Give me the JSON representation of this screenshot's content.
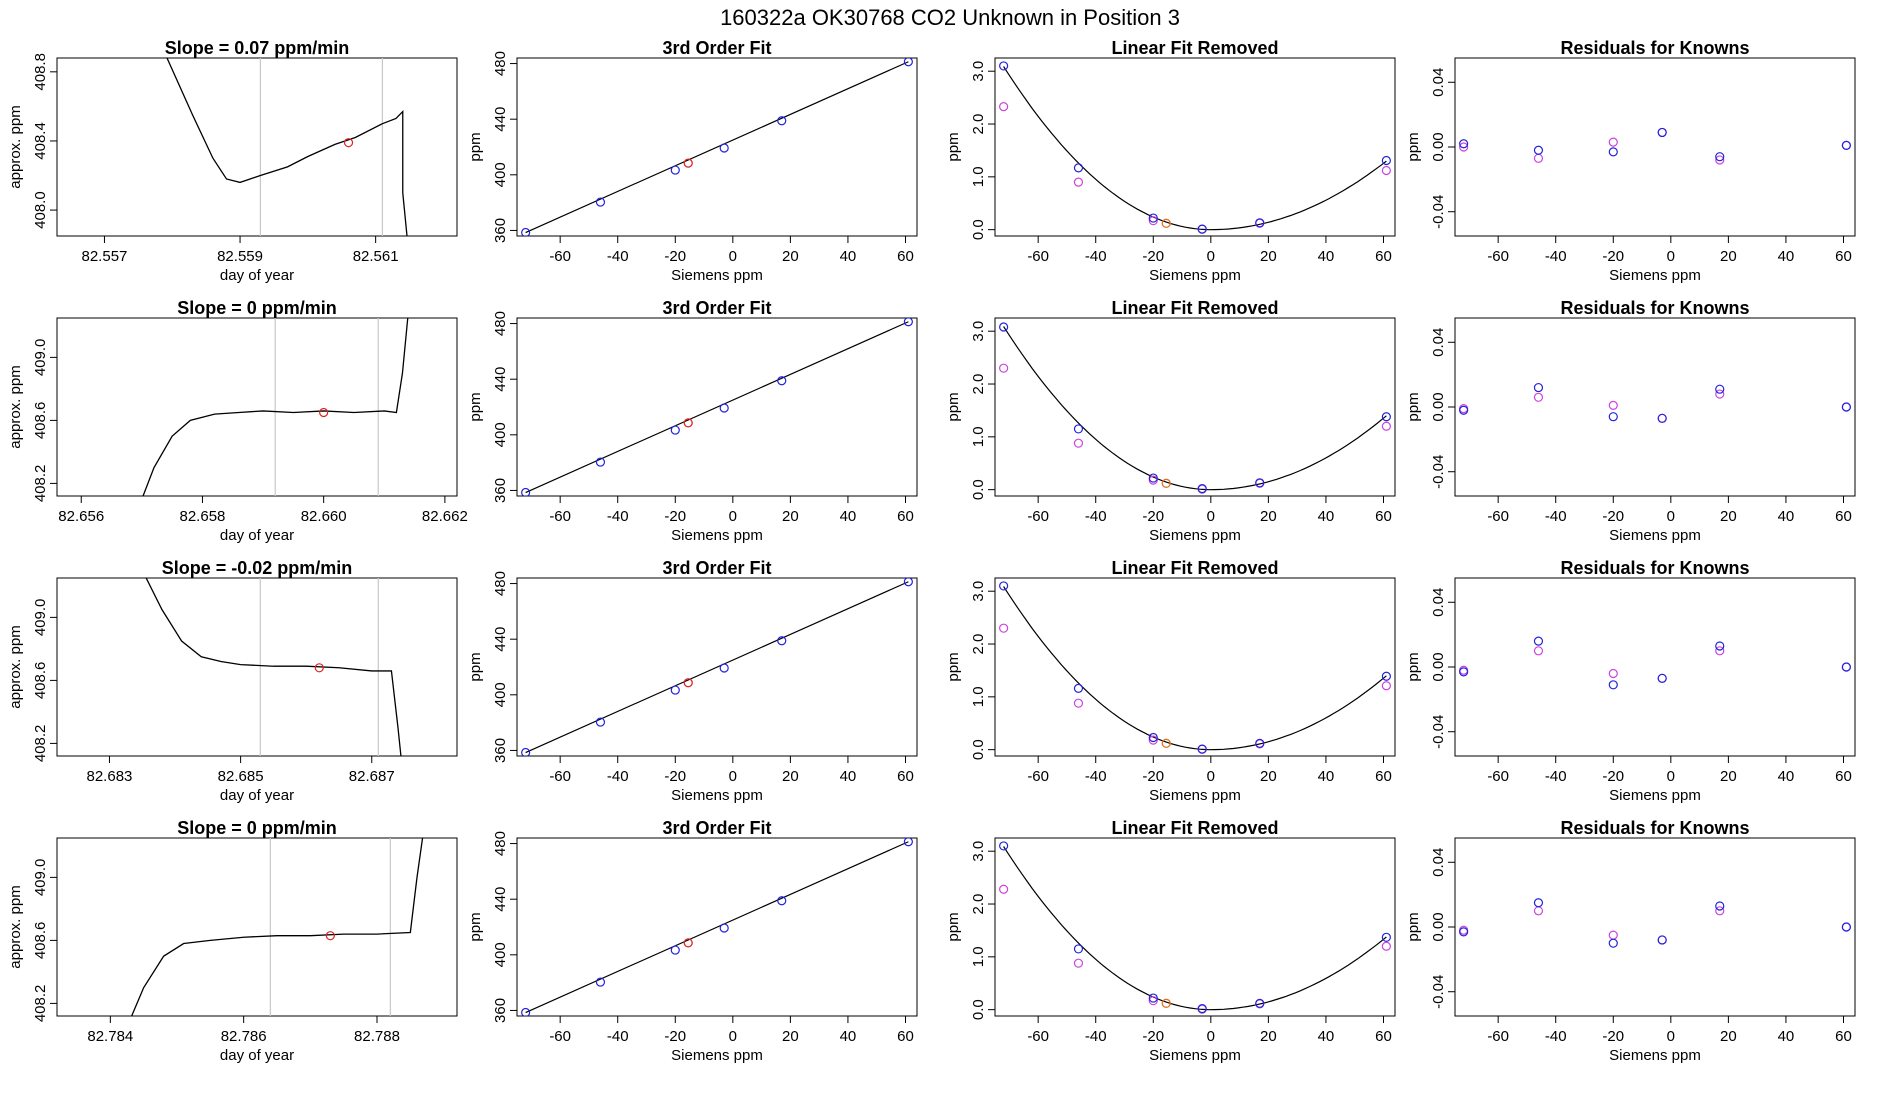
{
  "figure_title": "160322a     OK30768    CO2 Unknown in Position  3",
  "colors": {
    "known": "#2222dd",
    "residual_alt": "#cc44dd",
    "unknown": "#dd2222",
    "unknown_orange": "#e07020",
    "line": "#000000",
    "guide": "#c8c8c8"
  },
  "chart_data": [
    {
      "type": "line",
      "row": 1,
      "title": "Slope =  0.07  ppm/min",
      "xlabel": "day of year",
      "ylabel": "approx. ppm",
      "xlim": [
        82.5563,
        82.5622
      ],
      "ylim": [
        407.85,
        408.88
      ],
      "xticks": [
        "82.557",
        "82.559",
        "82.561"
      ],
      "xtick_values": [
        82.557,
        82.559,
        82.561
      ],
      "yticks": [
        "408.0",
        "408.4",
        "408.8"
      ],
      "ytick_values": [
        408.0,
        408.4,
        408.8
      ],
      "vlines": [
        82.5593,
        82.5611
      ],
      "trace_x": [
        82.5579,
        82.5583,
        82.5586,
        82.5588,
        82.559,
        82.5593,
        82.5597,
        82.56,
        82.5604,
        82.5607,
        82.5611,
        82.5613,
        82.5614,
        82.5614,
        82.5615
      ],
      "trace_y": [
        408.9,
        408.55,
        408.3,
        408.18,
        408.16,
        408.2,
        408.25,
        408.31,
        408.38,
        408.42,
        408.5,
        408.53,
        408.57,
        408.1,
        407.7
      ],
      "marker": {
        "x": 82.5606,
        "y": 408.39
      }
    },
    {
      "type": "line",
      "row": 2,
      "title": "Slope =  0  ppm/min",
      "xlabel": "day of year",
      "ylabel": "approx. ppm",
      "xlim": [
        82.6556,
        82.6622
      ],
      "ylim": [
        408.12,
        409.25
      ],
      "xticks": [
        "82.656",
        "82.658",
        "82.660",
        "82.662"
      ],
      "xtick_values": [
        82.656,
        82.658,
        82.66,
        82.662
      ],
      "yticks": [
        "408.2",
        "408.6",
        "409.0"
      ],
      "ytick_values": [
        408.2,
        408.6,
        409.0
      ],
      "vlines": [
        82.6592,
        82.6609
      ],
      "trace_x": [
        82.657,
        82.6572,
        82.6575,
        82.6578,
        82.6582,
        82.6586,
        82.659,
        82.6595,
        82.66,
        82.6605,
        82.661,
        82.6612,
        82.6613,
        82.6614
      ],
      "trace_y": [
        408.1,
        408.3,
        408.5,
        408.6,
        408.64,
        408.65,
        408.66,
        408.65,
        408.66,
        408.65,
        408.66,
        408.65,
        408.9,
        409.3
      ],
      "marker": {
        "x": 82.66,
        "y": 408.65
      }
    },
    {
      "type": "line",
      "row": 3,
      "title": "Slope =  -0.02  ppm/min",
      "xlabel": "day of year",
      "ylabel": "approx. ppm",
      "xlim": [
        82.6822,
        82.6883
      ],
      "ylim": [
        408.12,
        409.25
      ],
      "xticks": [
        "82.683",
        "82.685",
        "82.687"
      ],
      "xtick_values": [
        82.683,
        82.685,
        82.687
      ],
      "yticks": [
        "408.2",
        "408.6",
        "409.0"
      ],
      "ytick_values": [
        408.2,
        408.6,
        409.0
      ],
      "vlines": [
        82.6853,
        82.6871
      ],
      "trace_x": [
        82.6835,
        82.6838,
        82.6841,
        82.6844,
        82.6847,
        82.685,
        82.6855,
        82.686,
        82.6865,
        82.687,
        82.6873,
        82.6874,
        82.6875
      ],
      "trace_y": [
        409.3,
        409.05,
        408.85,
        408.75,
        408.72,
        408.7,
        408.69,
        408.69,
        408.68,
        408.66,
        408.66,
        408.3,
        407.9
      ],
      "marker": {
        "x": 82.6862,
        "y": 408.68
      }
    },
    {
      "type": "line",
      "row": 4,
      "title": "Slope =  0  ppm/min",
      "xlabel": "day of year",
      "ylabel": "approx. ppm",
      "xlim": [
        82.7832,
        82.7892
      ],
      "ylim": [
        408.12,
        409.25
      ],
      "xticks": [
        "82.784",
        "82.786",
        "82.788"
      ],
      "xtick_values": [
        82.784,
        82.786,
        82.788
      ],
      "yticks": [
        "408.2",
        "408.6",
        "409.0"
      ],
      "ytick_values": [
        408.2,
        408.6,
        409.0
      ],
      "vlines": [
        82.7864,
        82.7882
      ],
      "trace_x": [
        82.7843,
        82.7845,
        82.7848,
        82.7851,
        82.7855,
        82.786,
        82.7865,
        82.787,
        82.7875,
        82.788,
        82.7885,
        82.7886,
        82.7887
      ],
      "trace_y": [
        408.1,
        408.3,
        408.5,
        408.58,
        408.6,
        408.62,
        408.63,
        408.63,
        408.64,
        408.64,
        408.65,
        409.0,
        409.3
      ],
      "marker": {
        "x": 82.7873,
        "y": 408.63
      }
    },
    {
      "type": "scatter",
      "row": 1,
      "title": "3rd Order Fit",
      "xlabel": "Siemens ppm",
      "ylabel": "ppm",
      "xlim": [
        -75,
        64
      ],
      "ylim": [
        356,
        484
      ],
      "xticks": [
        "-60",
        "-40",
        "-20",
        "0",
        "20",
        "40",
        "60"
      ],
      "xtick_values": [
        -60,
        -40,
        -20,
        0,
        20,
        40,
        60
      ],
      "yticks": [
        "360",
        "400",
        "440",
        "480"
      ],
      "ytick_values": [
        360,
        400,
        440,
        480
      ],
      "curve_x": [
        -72,
        61
      ],
      "curve_y": [
        358.5,
        481.3
      ],
      "known_x": [
        -72,
        -46,
        -20,
        -3,
        17,
        61
      ],
      "known_y": [
        358.5,
        380.4,
        403.4,
        419.3,
        438.9,
        481.3
      ],
      "unknown_x": [
        -15.5
      ],
      "unknown_y": [
        408.4
      ]
    },
    {
      "type": "scatter",
      "row": 2,
      "title": "3rd Order Fit",
      "xlabel": "Siemens ppm",
      "ylabel": "ppm",
      "xlim": [
        -75,
        64
      ],
      "ylim": [
        356,
        484
      ],
      "xticks": [
        "-60",
        "-40",
        "-20",
        "0",
        "20",
        "40",
        "60"
      ],
      "xtick_values": [
        -60,
        -40,
        -20,
        0,
        20,
        40,
        60
      ],
      "yticks": [
        "360",
        "400",
        "440",
        "480"
      ],
      "ytick_values": [
        360,
        400,
        440,
        480
      ],
      "curve_x": [
        -72,
        61
      ],
      "curve_y": [
        358.5,
        481.3
      ],
      "known_x": [
        -72,
        -46,
        -20,
        -3,
        17,
        61
      ],
      "known_y": [
        358.5,
        380.4,
        403.4,
        419.3,
        438.9,
        481.3
      ],
      "unknown_x": [
        -15.5
      ],
      "unknown_y": [
        408.6
      ]
    },
    {
      "type": "scatter",
      "row": 3,
      "title": "3rd Order Fit",
      "xlabel": "Siemens ppm",
      "ylabel": "ppm",
      "xlim": [
        -75,
        64
      ],
      "ylim": [
        356,
        484
      ],
      "xticks": [
        "-60",
        "-40",
        "-20",
        "0",
        "20",
        "40",
        "60"
      ],
      "xtick_values": [
        -60,
        -40,
        -20,
        0,
        20,
        40,
        60
      ],
      "yticks": [
        "360",
        "400",
        "440",
        "480"
      ],
      "ytick_values": [
        360,
        400,
        440,
        480
      ],
      "curve_x": [
        -72,
        61
      ],
      "curve_y": [
        358.5,
        481.3
      ],
      "known_x": [
        -72,
        -46,
        -20,
        -3,
        17,
        61
      ],
      "known_y": [
        358.5,
        380.4,
        403.4,
        419.3,
        438.9,
        481.3
      ],
      "unknown_x": [
        -15.5
      ],
      "unknown_y": [
        408.7
      ]
    },
    {
      "type": "scatter",
      "row": 4,
      "title": "3rd Order Fit",
      "xlabel": "Siemens ppm",
      "ylabel": "ppm",
      "xlim": [
        -75,
        64
      ],
      "ylim": [
        356,
        484
      ],
      "xticks": [
        "-60",
        "-40",
        "-20",
        "0",
        "20",
        "40",
        "60"
      ],
      "xtick_values": [
        -60,
        -40,
        -20,
        0,
        20,
        40,
        60
      ],
      "yticks": [
        "360",
        "400",
        "440",
        "480"
      ],
      "ytick_values": [
        360,
        400,
        440,
        480
      ],
      "curve_x": [
        -72,
        61
      ],
      "curve_y": [
        358.5,
        481.3
      ],
      "known_x": [
        -72,
        -46,
        -20,
        -3,
        17,
        61
      ],
      "known_y": [
        358.5,
        380.4,
        403.4,
        419.3,
        438.9,
        481.3
      ],
      "unknown_x": [
        -15.5
      ],
      "unknown_y": [
        408.6
      ]
    },
    {
      "type": "scatter",
      "row": 1,
      "title": "Linear Fit Removed",
      "xlabel": "Siemens ppm",
      "ylabel": "ppm",
      "xlim": [
        -75,
        64
      ],
      "ylim": [
        -0.12,
        3.25
      ],
      "xticks": [
        "-60",
        "-40",
        "-20",
        "0",
        "20",
        "40",
        "60"
      ],
      "xtick_values": [
        -60,
        -40,
        -20,
        0,
        20,
        40,
        60
      ],
      "yticks": [
        "0.0",
        "1.0",
        "2.0",
        "3.0"
      ],
      "ytick_values": [
        0,
        1,
        2,
        3
      ],
      "parabola": {
        "vertex_x": 0,
        "a_left": 0.000596,
        "a_right": 0.000349
      },
      "known_x": [
        -72,
        -46,
        -20,
        -3,
        17,
        61
      ],
      "known_y": [
        3.1,
        1.17,
        0.22,
        0.01,
        0.13,
        1.31
      ],
      "alt_x": [
        -72,
        -46,
        -20,
        -3,
        17,
        61
      ],
      "alt_y": [
        2.33,
        0.9,
        0.17,
        0.01,
        0.12,
        1.12
      ],
      "unknown_x": [
        -15.5
      ],
      "unknown_y": [
        0.12
      ]
    },
    {
      "type": "scatter",
      "row": 2,
      "title": "Linear Fit Removed",
      "xlabel": "Siemens ppm",
      "ylabel": "ppm",
      "xlim": [
        -75,
        64
      ],
      "ylim": [
        -0.12,
        3.25
      ],
      "xticks": [
        "-60",
        "-40",
        "-20",
        "0",
        "20",
        "40",
        "60"
      ],
      "xtick_values": [
        -60,
        -40,
        -20,
        0,
        20,
        40,
        60
      ],
      "yticks": [
        "0.0",
        "1.0",
        "2.0",
        "3.0"
      ],
      "ytick_values": [
        0,
        1,
        2,
        3
      ],
      "parabola": {
        "vertex_x": 0,
        "a_left": 0.000596,
        "a_right": 0.000376
      },
      "known_x": [
        -72,
        -46,
        -20,
        -3,
        17,
        61
      ],
      "known_y": [
        3.08,
        1.15,
        0.22,
        0.02,
        0.13,
        1.38
      ],
      "alt_x": [
        -72,
        -46,
        -20,
        -3,
        17,
        61
      ],
      "alt_y": [
        2.3,
        0.88,
        0.18,
        0.01,
        0.12,
        1.2
      ],
      "unknown_x": [
        -15.5
      ],
      "unknown_y": [
        0.12
      ]
    },
    {
      "type": "scatter",
      "row": 3,
      "title": "Linear Fit Removed",
      "xlabel": "Siemens ppm",
      "ylabel": "ppm",
      "xlim": [
        -75,
        64
      ],
      "ylim": [
        -0.12,
        3.25
      ],
      "xticks": [
        "-60",
        "-40",
        "-20",
        "0",
        "20",
        "40",
        "60"
      ],
      "xtick_values": [
        -60,
        -40,
        -20,
        0,
        20,
        40,
        60
      ],
      "yticks": [
        "0.0",
        "1.0",
        "2.0",
        "3.0"
      ],
      "ytick_values": [
        0,
        1,
        2,
        3
      ],
      "parabola": {
        "vertex_x": 0,
        "a_left": 0.000596,
        "a_right": 0.000376
      },
      "known_x": [
        -72,
        -46,
        -20,
        -3,
        17,
        61
      ],
      "known_y": [
        3.1,
        1.16,
        0.23,
        0.01,
        0.12,
        1.39
      ],
      "alt_x": [
        -72,
        -46,
        -20,
        -3,
        17,
        61
      ],
      "alt_y": [
        2.3,
        0.88,
        0.18,
        0.01,
        0.11,
        1.21
      ],
      "unknown_x": [
        -15.5
      ],
      "unknown_y": [
        0.12
      ]
    },
    {
      "type": "scatter",
      "row": 4,
      "title": "Linear Fit Removed",
      "xlabel": "Siemens ppm",
      "ylabel": "ppm",
      "xlim": [
        -75,
        64
      ],
      "ylim": [
        -0.12,
        3.25
      ],
      "xticks": [
        "-60",
        "-40",
        "-20",
        "0",
        "20",
        "40",
        "60"
      ],
      "xtick_values": [
        -60,
        -40,
        -20,
        0,
        20,
        40,
        60
      ],
      "yticks": [
        "0.0",
        "1.0",
        "2.0",
        "3.0"
      ],
      "ytick_values": [
        0,
        1,
        2,
        3
      ],
      "parabola": {
        "vertex_x": 0,
        "a_left": 0.000596,
        "a_right": 0.00037
      },
      "known_x": [
        -72,
        -46,
        -20,
        -3,
        17,
        61
      ],
      "known_y": [
        3.1,
        1.15,
        0.22,
        0.02,
        0.12,
        1.37
      ],
      "alt_x": [
        -72,
        -46,
        -20,
        -3,
        17,
        61
      ],
      "alt_y": [
        2.28,
        0.88,
        0.17,
        0.01,
        0.11,
        1.2
      ],
      "unknown_x": [
        -15.5
      ],
      "unknown_y": [
        0.12
      ]
    },
    {
      "type": "scatter",
      "row": 1,
      "title": "Residuals for Knowns",
      "xlabel": "Siemens ppm",
      "ylabel": "ppm",
      "xlim": [
        -75,
        64
      ],
      "ylim": [
        -0.055,
        0.055
      ],
      "xticks": [
        "-60",
        "-40",
        "-20",
        "0",
        "20",
        "40",
        "60"
      ],
      "xtick_values": [
        -60,
        -40,
        -20,
        0,
        20,
        40,
        60
      ],
      "yticks": [
        "-0.04",
        "0.00",
        "0.04"
      ],
      "ytick_values": [
        -0.04,
        0.0,
        0.04
      ],
      "known_x": [
        -72,
        -46,
        -20,
        -3,
        17,
        61
      ],
      "known_y": [
        0.002,
        -0.002,
        -0.003,
        0.009,
        -0.006,
        0.001
      ],
      "alt_x": [
        -72,
        -46,
        -20,
        -3,
        17,
        61
      ],
      "alt_y": [
        0.0,
        -0.007,
        0.003,
        0.009,
        -0.008,
        0.001
      ]
    },
    {
      "type": "scatter",
      "row": 2,
      "title": "Residuals for Knowns",
      "xlabel": "Siemens ppm",
      "ylabel": "ppm",
      "xlim": [
        -75,
        64
      ],
      "ylim": [
        -0.055,
        0.055
      ],
      "xticks": [
        "-60",
        "-40",
        "-20",
        "0",
        "20",
        "40",
        "60"
      ],
      "xtick_values": [
        -60,
        -40,
        -20,
        0,
        20,
        40,
        60
      ],
      "yticks": [
        "-0.04",
        "0.00",
        "0.04"
      ],
      "ytick_values": [
        -0.04,
        0.0,
        0.04
      ],
      "known_x": [
        -72,
        -46,
        -20,
        -3,
        17,
        61
      ],
      "known_y": [
        -0.002,
        0.012,
        -0.006,
        -0.007,
        0.011,
        0.0
      ],
      "alt_x": [
        -72,
        -46,
        -20,
        -3,
        17,
        61
      ],
      "alt_y": [
        -0.001,
        0.006,
        0.001,
        -0.007,
        0.008,
        0.0
      ]
    },
    {
      "type": "scatter",
      "row": 3,
      "title": "Residuals for Knowns",
      "xlabel": "Siemens ppm",
      "ylabel": "ppm",
      "xlim": [
        -75,
        64
      ],
      "ylim": [
        -0.055,
        0.055
      ],
      "xticks": [
        "-60",
        "-40",
        "-20",
        "0",
        "20",
        "40",
        "60"
      ],
      "xtick_values": [
        -60,
        -40,
        -20,
        0,
        20,
        40,
        60
      ],
      "yticks": [
        "-0.04",
        "0.00",
        "0.04"
      ],
      "ytick_values": [
        -0.04,
        0.0,
        0.04
      ],
      "known_x": [
        -72,
        -46,
        -20,
        -3,
        17,
        61
      ],
      "known_y": [
        -0.003,
        0.016,
        -0.011,
        -0.007,
        0.013,
        0.0
      ],
      "alt_x": [
        -72,
        -46,
        -20,
        -3,
        17,
        61
      ],
      "alt_y": [
        -0.002,
        0.01,
        -0.004,
        -0.007,
        0.01,
        0.0
      ]
    },
    {
      "type": "scatter",
      "row": 4,
      "title": "Residuals for Knowns",
      "xlabel": "Siemens ppm",
      "ylabel": "ppm",
      "xlim": [
        -75,
        64
      ],
      "ylim": [
        -0.055,
        0.055
      ],
      "xticks": [
        "-60",
        "-40",
        "-20",
        "0",
        "20",
        "40",
        "60"
      ],
      "xtick_values": [
        -60,
        -40,
        -20,
        0,
        20,
        40,
        60
      ],
      "yticks": [
        "-0.04",
        "0.00",
        "0.04"
      ],
      "ytick_values": [
        -0.04,
        0.0,
        0.04
      ],
      "known_x": [
        -72,
        -46,
        -20,
        -3,
        17,
        61
      ],
      "known_y": [
        -0.003,
        0.015,
        -0.01,
        -0.008,
        0.013,
        0.0
      ],
      "alt_x": [
        -72,
        -46,
        -20,
        -3,
        17,
        61
      ],
      "alt_y": [
        -0.002,
        0.01,
        -0.005,
        -0.008,
        0.01,
        0.0
      ]
    }
  ]
}
